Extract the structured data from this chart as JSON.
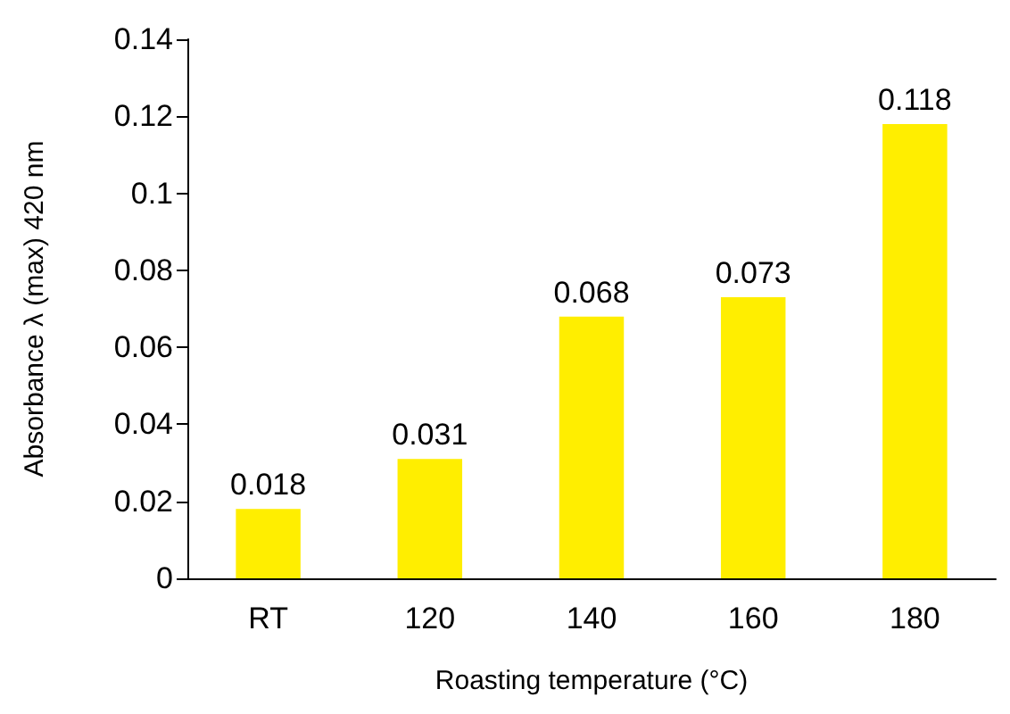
{
  "chart_data": {
    "type": "bar",
    "xlabel": "Roasting temperature (°C)",
    "ylabel": "Absorbance λ (max) 420 nm",
    "categories": [
      "RT",
      "120",
      "140",
      "160",
      "180"
    ],
    "values": [
      0.018,
      0.031,
      0.068,
      0.073,
      0.118
    ],
    "color": "#ffee00",
    "ylim": [
      0,
      0.14
    ],
    "yticks": [
      0,
      0.02,
      0.04,
      0.06,
      0.08,
      0.1,
      0.12,
      0.14
    ],
    "grid": false,
    "data_labels": true
  }
}
